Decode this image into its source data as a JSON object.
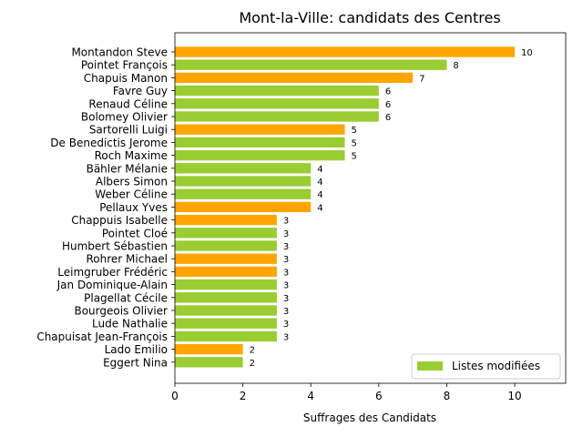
{
  "chart_data": {
    "type": "bar",
    "orientation": "horizontal",
    "title": "Mont-la-Ville: candidats des Centres",
    "xlabel": "Suffrages des Candidats",
    "ylabel": "",
    "xlim": [
      0,
      11.5
    ],
    "xticks": [
      "0",
      "2",
      "4",
      "6",
      "8",
      "10"
    ],
    "grid": false,
    "legend": {
      "placement": "bottom-right",
      "entries": [
        {
          "label": "Listes modifiées",
          "color": "#9acd32"
        }
      ]
    },
    "colors": {
      "orange": "#ffa500",
      "green": "#9acd32"
    },
    "categories": [
      "Montandon Steve",
      "Pointet François",
      "Chapuis Manon",
      "Favre Guy",
      "Renaud Céline",
      "Bolomey Olivier",
      "Sartorelli Luigi",
      "De Benedictis Jerome",
      "Roch Maxime",
      "Bähler Mélanie",
      "Albers Simon",
      "Weber Céline",
      "Pellaux Yves",
      "Chappuis Isabelle",
      "Pointet Cloé",
      "Humbert Sébastien",
      "Rohrer Michael",
      "Leimgruber Frédéric",
      "Jan Dominique-Alain",
      "Plagellat Cécile",
      "Bourgeois Olivier",
      "Lude Nathalie",
      "Chapuisat Jean-François",
      "Lado Emilio",
      "Eggert Nina"
    ],
    "values": [
      10,
      8,
      7,
      6,
      6,
      6,
      5,
      5,
      5,
      4,
      4,
      4,
      4,
      3,
      3,
      3,
      3,
      3,
      3,
      3,
      3,
      3,
      3,
      2,
      2
    ],
    "value_labels": [
      "10",
      "8",
      "7",
      "6",
      "6",
      "6",
      "5",
      "5",
      "5",
      "4",
      "4",
      "4",
      "4",
      "3",
      "3",
      "3",
      "3",
      "3",
      "3",
      "3",
      "3",
      "3",
      "3",
      "2",
      "2"
    ],
    "bar_colors": [
      "#ffa500",
      "#9acd32",
      "#ffa500",
      "#9acd32",
      "#9acd32",
      "#9acd32",
      "#ffa500",
      "#9acd32",
      "#9acd32",
      "#9acd32",
      "#9acd32",
      "#9acd32",
      "#ffa500",
      "#ffa500",
      "#9acd32",
      "#9acd32",
      "#ffa500",
      "#ffa500",
      "#9acd32",
      "#9acd32",
      "#9acd32",
      "#9acd32",
      "#9acd32",
      "#ffa500",
      "#9acd32"
    ]
  }
}
